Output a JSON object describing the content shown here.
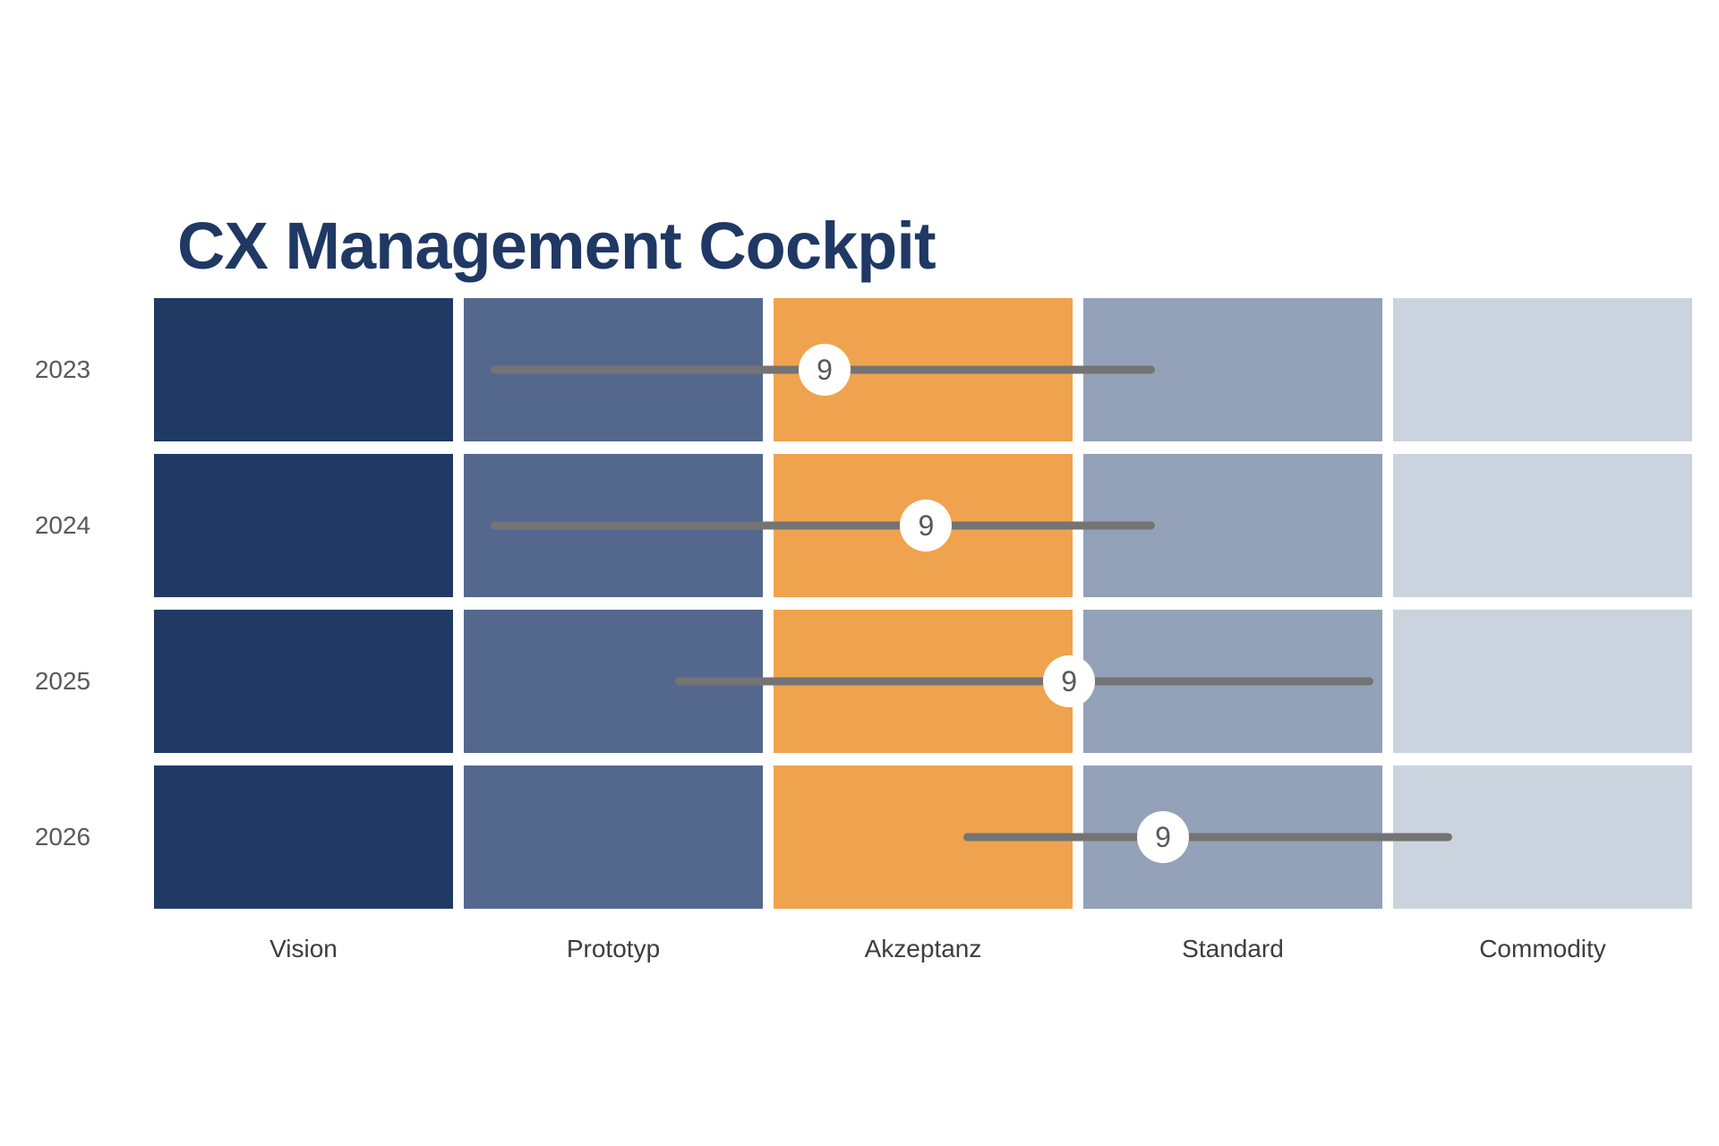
{
  "title": "CX Management Cockpit",
  "colors": {
    "background": "#ffffff",
    "title": "#1f3864",
    "row_label": "#595959",
    "column_label": "#3d3d3d",
    "range_line": "#747474",
    "marker_fill": "#ffffff",
    "marker_text": "#595959"
  },
  "chart_data": {
    "type": "heatmap",
    "title": "CX Management Cockpit",
    "rows": [
      "2023",
      "2024",
      "2025",
      "2026"
    ],
    "columns": [
      "Vision",
      "Prototyp",
      "Akzeptanz",
      "Standard",
      "Commodity"
    ],
    "column_colors": [
      "#213a64",
      "#54688e",
      "#efa34e",
      "#93a2b9",
      "#cbd4de"
    ],
    "grid": "5 phase columns x 4 year rows, white gaps between cells",
    "legend_position": "none",
    "axes": {
      "x": "phase (unlabeled axis, 0 = left edge of Vision, 1 = right edge of Commodity)",
      "y": "year"
    },
    "markers": [
      {
        "row": "2023",
        "value": 9,
        "position": 0.436,
        "range_start": 0.219,
        "range_end": 0.651,
        "marker_phase": "Akzeptanz"
      },
      {
        "row": "2024",
        "value": 9,
        "position": 0.502,
        "range_start": 0.219,
        "range_end": 0.651,
        "marker_phase": "Akzeptanz"
      },
      {
        "row": "2025",
        "value": 9,
        "position": 0.595,
        "range_start": 0.339,
        "range_end": 0.793,
        "marker_phase": "Akzeptanz"
      },
      {
        "row": "2026",
        "value": 9,
        "position": 0.656,
        "range_start": 0.526,
        "range_end": 0.844,
        "marker_phase": "Standard"
      }
    ]
  }
}
